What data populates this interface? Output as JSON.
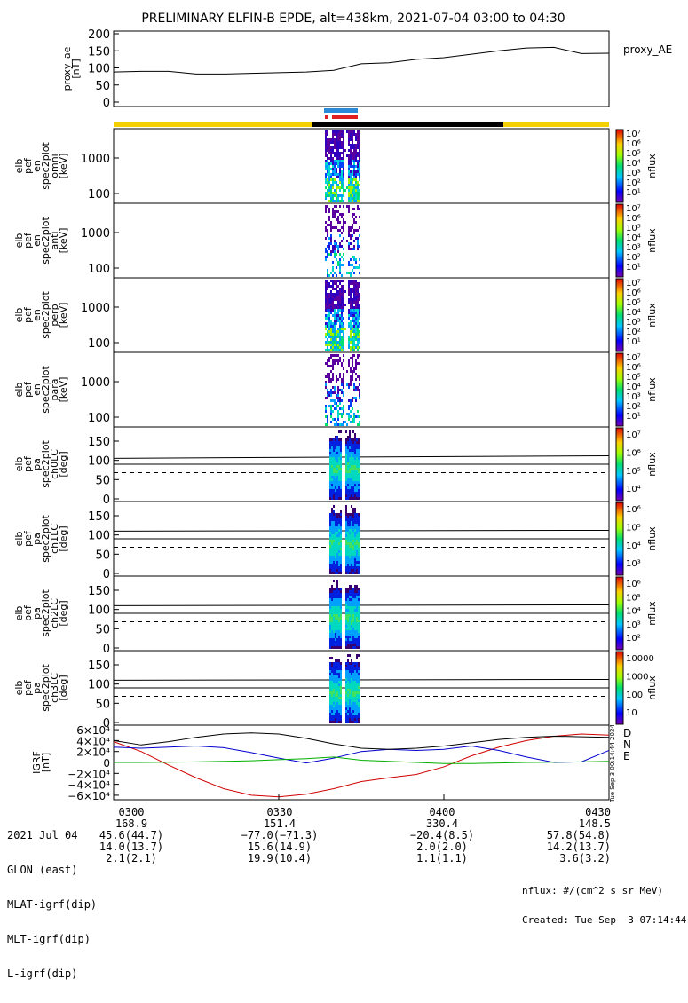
{
  "title": "PRELIMINARY ELFIN-B EPDE, alt=438km, 2021-07-04 03:00 to 04:30",
  "colors": {
    "bar_yellow": "#f5d000",
    "bar_black": "#000000",
    "fgm_blue": "#2a8ad8",
    "fgm_red": "#e02020",
    "D": "#d00000",
    "N": "#0000d0",
    "E": "#00b000"
  },
  "ae_panel": {
    "ylabel": "proxy_ae\n[nT]",
    "yticks": [
      "200",
      "150",
      "100",
      "50",
      "0"
    ],
    "label": "proxy_AE"
  },
  "spec_panels": [
    {
      "ylabel": "elb\npef\nen\nspec2plot\nomni\n[keV]",
      "yticks": [
        "1000",
        "100"
      ],
      "zlabel": "nflux",
      "ztop": "10⁷"
    },
    {
      "ylabel": "elb\npef\nen\nspec2plot\nanti\n[keV]",
      "yticks": [
        "1000",
        "100"
      ],
      "zlabel": "nflux",
      "ztop": "10⁷"
    },
    {
      "ylabel": "elb\npef\nen\nspec2plot\nperp\n[keV]",
      "yticks": [
        "1000",
        "100"
      ],
      "zlabel": "nflux",
      "ztop": "10⁷"
    },
    {
      "ylabel": "elb\npef\nen\nspec2plot\npara\n[keV]",
      "yticks": [
        "1000",
        "100"
      ],
      "zlabel": "nflux",
      "ztop": "10⁷"
    }
  ],
  "pa_panels": [
    {
      "ylabel": "elb\npef\npa\nspec2plot\nch0LC\n[deg]",
      "yticks": [
        "150",
        "100",
        "50",
        "0"
      ],
      "zlabel": "nflux",
      "zticks": [
        "10⁷",
        "10⁶",
        "10⁵",
        "10⁴"
      ]
    },
    {
      "ylabel": "elb\npef\npa\nspec2plot\nch1LC\n[deg]",
      "yticks": [
        "150",
        "100",
        "50",
        "0"
      ],
      "zlabel": "nflux",
      "zticks": [
        "10⁶",
        "10⁵",
        "10⁴",
        "10³"
      ]
    },
    {
      "ylabel": "elb\npef\npa\nspec2plot\nch2LC\n[deg]",
      "yticks": [
        "150",
        "100",
        "50",
        "0"
      ],
      "zlabel": "nflux",
      "zticks": [
        "10⁶",
        "10⁵",
        "10⁴",
        "10³",
        "10²"
      ]
    },
    {
      "ylabel": "elb\npef\npa\nspec2plot\nch3LC\n[deg]",
      "yticks": [
        "150",
        "100",
        "50",
        "0"
      ],
      "zlabel": "nflux",
      "zticks": [
        "10000",
        "1000",
        "100",
        "10"
      ]
    }
  ],
  "igrf_panel": {
    "ylabel": "IGRF\n[nT]",
    "yticks": [
      "6×10⁴",
      "4×10⁴",
      "2×10⁴",
      "0",
      "−2×10⁴",
      "−4×10⁴",
      "−6×10⁴"
    ],
    "legend": [
      "D",
      "N",
      "E"
    ],
    "stamp": "Tue Sep  3 00:14:44 2024"
  },
  "chart_data": [
    {
      "type": "line",
      "title": "PRELIMINARY ELFIN-B EPDE, alt=438km, 2021-07-04 03:00 to 04:30",
      "ylabel": "proxy_ae [nT]",
      "ylim": [
        0,
        200
      ],
      "x": [
        "0300",
        "0305",
        "0310",
        "0315",
        "0320",
        "0325",
        "0330",
        "0335",
        "0340",
        "0345",
        "0350",
        "0355",
        "0400",
        "0405",
        "0410",
        "0415",
        "0420",
        "0425",
        "0430"
      ],
      "series": [
        {
          "name": "proxy_AE",
          "values": [
            88,
            90,
            90,
            82,
            82,
            84,
            86,
            88,
            93,
            112,
            115,
            125,
            130,
            140,
            150,
            158,
            160,
            142,
            143
          ]
        }
      ]
    },
    {
      "type": "line",
      "ylabel": "IGRF [nT]",
      "ylim": [
        -65000,
        65000
      ],
      "x": [
        "0300",
        "0305",
        "0310",
        "0315",
        "0320",
        "0325",
        "0330",
        "0335",
        "0340",
        "0345",
        "0350",
        "0355",
        "0400",
        "0405",
        "0410",
        "0415",
        "0420",
        "0425",
        "0430"
      ],
      "series": [
        {
          "name": "D",
          "values": [
            38000,
            20000,
            -5000,
            -28000,
            -48000,
            -60000,
            -63000,
            -58000,
            -48000,
            -35000,
            -28000,
            -22000,
            -8000,
            12000,
            28000,
            40000,
            48000,
            52000,
            50000
          ]
        },
        {
          "name": "N",
          "values": [
            28000,
            26000,
            28000,
            30000,
            27000,
            18000,
            8000,
            -1000,
            8000,
            20000,
            24000,
            22000,
            24000,
            30000,
            22000,
            10000,
            0,
            1000,
            22000
          ]
        },
        {
          "name": "E",
          "values": [
            0,
            0,
            500,
            1000,
            2000,
            3000,
            5000,
            7000,
            10000,
            4000,
            2000,
            0,
            -2000,
            -2000,
            -1000,
            0,
            500,
            1000,
            2000
          ]
        }
      ]
    }
  ],
  "footer": {
    "rows": [
      {
        "label": "2021 Jul 04",
        "v": [
          "0300",
          "0330",
          "0400",
          "0430"
        ]
      },
      {
        "label": "GLON (east)",
        "v": [
          "168.9",
          "151.4",
          "330.4",
          "148.5"
        ]
      },
      {
        "label": "MLAT-igrf(dip)",
        "v": [
          "45.6(44.7)",
          "−77.0(−71.3)",
          "−20.4(8.5)",
          "57.8(54.8)"
        ]
      },
      {
        "label": "MLT-igrf(dip)",
        "v": [
          "14.0(13.7)",
          "15.6(14.9)",
          "2.0(2.0)",
          "14.2(13.7)"
        ]
      },
      {
        "label": "L-igrf(dip)",
        "v": [
          "2.1(2.1)",
          "19.9(10.4)",
          "1.1(1.1)",
          "3.6(3.2)"
        ]
      }
    ],
    "units": "nflux: #/(cm^2 s sr MeV)",
    "created": "Created: Tue Sep  3 07:14:44 2024"
  }
}
